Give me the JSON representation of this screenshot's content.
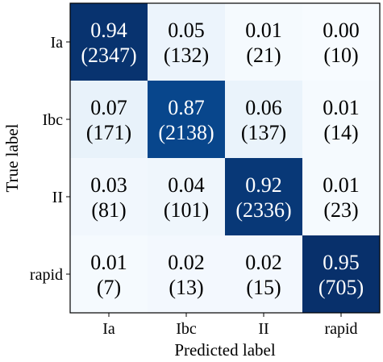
{
  "chart_data": {
    "type": "heatmap",
    "title": "",
    "xlabel": "Predicted label",
    "ylabel": "True label",
    "x_categories": [
      "Ia",
      "Ibc",
      "II",
      "rapid"
    ],
    "y_categories": [
      "Ia",
      "Ibc",
      "II",
      "rapid"
    ],
    "values": [
      [
        0.94,
        0.05,
        0.01,
        0.0
      ],
      [
        0.07,
        0.87,
        0.06,
        0.01
      ],
      [
        0.03,
        0.04,
        0.92,
        0.01
      ],
      [
        0.01,
        0.02,
        0.02,
        0.95
      ]
    ],
    "counts": [
      [
        2347,
        132,
        21,
        10
      ],
      [
        171,
        2138,
        137,
        14
      ],
      [
        81,
        101,
        2336,
        23
      ],
      [
        7,
        13,
        15,
        705
      ]
    ],
    "value_labels": [
      [
        "0.94",
        "0.05",
        "0.01",
        "0.00"
      ],
      [
        "0.07",
        "0.87",
        "0.06",
        "0.01"
      ],
      [
        "0.03",
        "0.04",
        "0.92",
        "0.01"
      ],
      [
        "0.01",
        "0.02",
        "0.02",
        "0.95"
      ]
    ],
    "count_labels": [
      [
        "(2347)",
        "(132)",
        "(21)",
        "(10)"
      ],
      [
        "(171)",
        "(2138)",
        "(137)",
        "(14)"
      ],
      [
        "(81)",
        "(101)",
        "(2336)",
        "(23)"
      ],
      [
        "(7)",
        "(13)",
        "(15)",
        "(705)"
      ]
    ],
    "colormap": "Blues",
    "color_low": "#f7fbff",
    "color_high": "#08306b",
    "text_color_dark": "#000000",
    "text_color_light": "#ffffff",
    "grid": false,
    "legend": "none"
  }
}
